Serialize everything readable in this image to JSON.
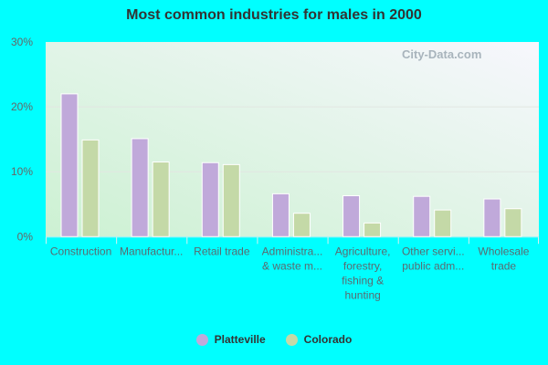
{
  "chart_data": {
    "type": "bar",
    "title": "Most common industries for males in 2000",
    "categories": [
      [
        "Construction"
      ],
      [
        "Manufactur..."
      ],
      [
        "Retail trade"
      ],
      [
        "Administra...",
        "& waste m..."
      ],
      [
        "Agriculture,",
        "forestry,",
        "fishing &",
        "hunting"
      ],
      [
        "Other servi...",
        "public adm..."
      ],
      [
        "Wholesale",
        "trade"
      ]
    ],
    "series": [
      {
        "name": "Platteville",
        "color": "#c0a9da",
        "values": [
          22.0,
          15.1,
          11.4,
          6.6,
          6.3,
          6.2,
          5.8
        ]
      },
      {
        "name": "Colorado",
        "color": "#c4d9a7",
        "values": [
          14.9,
          11.5,
          11.1,
          3.6,
          2.1,
          4.1,
          4.3
        ]
      }
    ],
    "ylim": [
      0,
      30
    ],
    "yticks": [
      "0%",
      "10%",
      "20%",
      "30%"
    ],
    "ytick_values": [
      0,
      10,
      20,
      30
    ],
    "grid": true,
    "legend": "bottom",
    "watermark": "City-Data.com"
  }
}
